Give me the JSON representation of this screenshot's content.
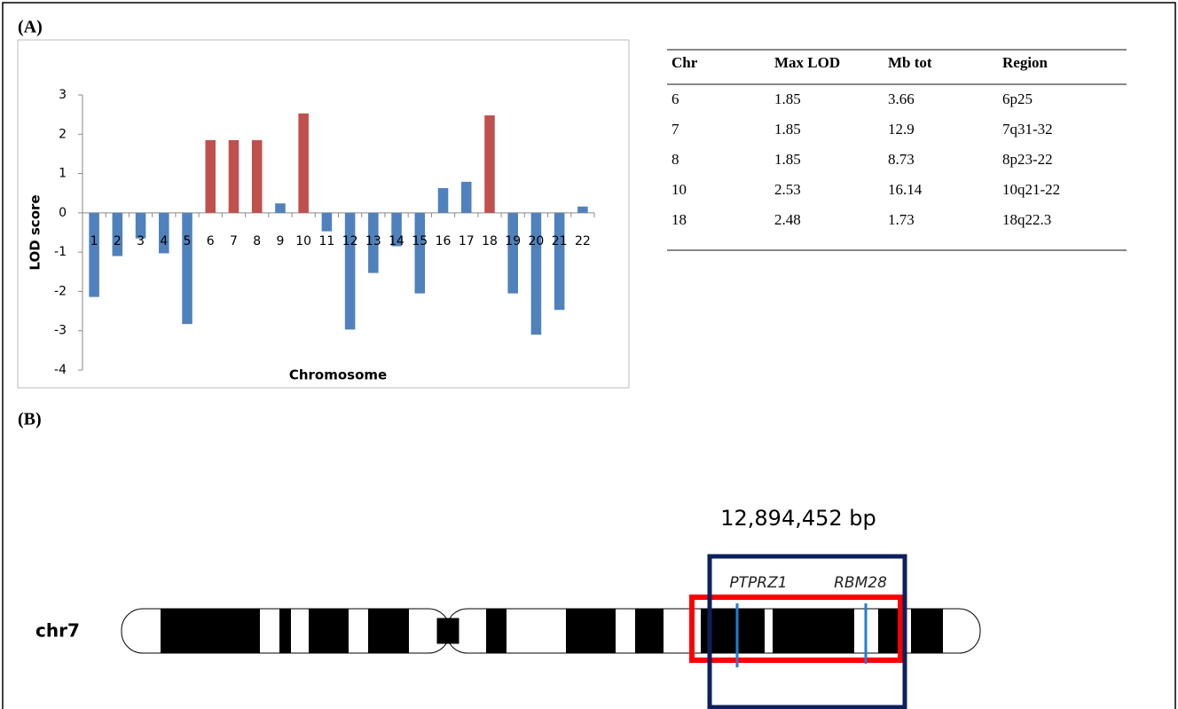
{
  "panel_a_label": "(A)",
  "chart_data": {
    "type": "bar",
    "x_label": "Chromosome",
    "y_label": "LOD score",
    "categories": [
      "1",
      "2",
      "3",
      "4",
      "5",
      "6",
      "7",
      "8",
      "9",
      "10",
      "11",
      "12",
      "13",
      "14",
      "15",
      "16",
      "17",
      "18",
      "19",
      "20",
      "21",
      "22"
    ],
    "values": [
      -2.14,
      -1.1,
      -0.65,
      -1.03,
      -2.83,
      1.85,
      1.85,
      1.85,
      0.24,
      2.53,
      -0.47,
      -2.97,
      -1.53,
      -0.85,
      -2.05,
      0.63,
      0.79,
      2.48,
      -2.05,
      -3.1,
      -2.47,
      0.16
    ],
    "colors": [
      "#4f81bd",
      "#4f81bd",
      "#4f81bd",
      "#4f81bd",
      "#4f81bd",
      "#c0504d",
      "#c0504d",
      "#c0504d",
      "#4f81bd",
      "#c0504d",
      "#4f81bd",
      "#4f81bd",
      "#4f81bd",
      "#4f81bd",
      "#4f81bd",
      "#4f81bd",
      "#4f81bd",
      "#c0504d",
      "#4f81bd",
      "#4f81bd",
      "#4f81bd",
      "#4f81bd"
    ],
    "ylim": [
      -4,
      3
    ],
    "yticks": [
      -4,
      -3,
      -2,
      -1,
      0,
      1,
      2,
      3
    ]
  },
  "table": {
    "header": [
      "Chr",
      "Max LOD",
      "Mb tot",
      "Region"
    ],
    "rows": [
      [
        "6",
        "1.85",
        "3.66",
        "6p25"
      ],
      [
        "7",
        "1.85",
        "12.9",
        "7q31-32"
      ],
      [
        "8",
        "1.85",
        "8.73",
        "8p23-22"
      ],
      [
        "10",
        "2.53",
        "16.14",
        "10q21-22"
      ],
      [
        "18",
        "2.48",
        "1.73",
        "18q22.3"
      ]
    ]
  },
  "panel_b_label": "(B)",
  "ideogram": {
    "size_label": "12,894,452 bp",
    "chromosome": "chr7",
    "genes": [
      "PTPRZ1",
      "RBM28"
    ]
  }
}
